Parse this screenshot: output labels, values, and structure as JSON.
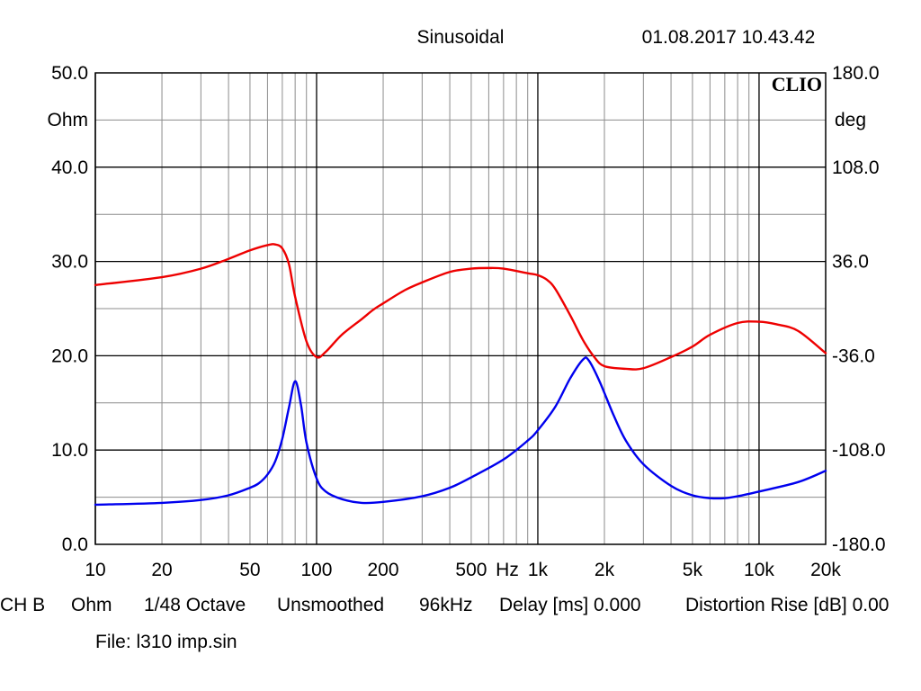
{
  "header": {
    "mode": "Sinusoidal",
    "datetime": "01.08.2017 10.43.42"
  },
  "brand": "CLIO",
  "chart_data": {
    "type": "line",
    "x_scale": "log",
    "xlim": [
      10,
      20000
    ],
    "x_ticks": [
      {
        "value": 10,
        "label": "10"
      },
      {
        "value": 20,
        "label": "20"
      },
      {
        "value": 50,
        "label": "50"
      },
      {
        "value": 100,
        "label": "100"
      },
      {
        "value": 200,
        "label": "200"
      },
      {
        "value": 500,
        "label": "500"
      },
      {
        "value": 1000,
        "label": "1k"
      },
      {
        "value": 2000,
        "label": "2k"
      },
      {
        "value": 5000,
        "label": "5k"
      },
      {
        "value": 10000,
        "label": "10k"
      },
      {
        "value": 20000,
        "label": "20k"
      }
    ],
    "x_unit_label": "Hz",
    "y_left": {
      "unit": "Ohm",
      "lim": [
        0,
        50
      ],
      "ticks": [
        "0.0",
        "10.0",
        "20.0",
        "30.0",
        "40.0",
        "50.0"
      ]
    },
    "y_right": {
      "unit": "deg",
      "lim": [
        -180,
        180
      ],
      "ticks": [
        "-180.0",
        "-108.0",
        "-36.0",
        "36.0",
        "108.0",
        "180.0"
      ]
    },
    "grid": true,
    "series": [
      {
        "axis": "left",
        "color": "#0000ee",
        "points": [
          [
            10,
            4.2
          ],
          [
            20,
            4.4
          ],
          [
            30,
            4.7
          ],
          [
            40,
            5.2
          ],
          [
            50,
            6.0
          ],
          [
            55,
            6.5
          ],
          [
            60,
            7.4
          ],
          [
            65,
            8.8
          ],
          [
            70,
            11.2
          ],
          [
            75,
            14.5
          ],
          [
            80,
            17.3
          ],
          [
            85,
            14.8
          ],
          [
            90,
            10.8
          ],
          [
            100,
            7.0
          ],
          [
            110,
            5.6
          ],
          [
            130,
            4.8
          ],
          [
            160,
            4.4
          ],
          [
            200,
            4.5
          ],
          [
            300,
            5.1
          ],
          [
            400,
            6.0
          ],
          [
            500,
            7.1
          ],
          [
            700,
            9.0
          ],
          [
            900,
            11.0
          ],
          [
            1000,
            12.1
          ],
          [
            1200,
            14.6
          ],
          [
            1400,
            17.6
          ],
          [
            1600,
            19.6
          ],
          [
            1700,
            19.5
          ],
          [
            1900,
            17.3
          ],
          [
            2200,
            13.7
          ],
          [
            2500,
            11.0
          ],
          [
            3000,
            8.5
          ],
          [
            4000,
            6.2
          ],
          [
            5000,
            5.2
          ],
          [
            6000,
            4.9
          ],
          [
            7000,
            4.9
          ],
          [
            8000,
            5.1
          ],
          [
            10000,
            5.6
          ],
          [
            15000,
            6.6
          ],
          [
            20000,
            7.8
          ]
        ]
      },
      {
        "axis": "right",
        "color": "#ee0000",
        "points": [
          [
            10,
            18.0
          ],
          [
            20,
            24.0
          ],
          [
            30,
            30.5
          ],
          [
            40,
            38.0
          ],
          [
            50,
            44.5
          ],
          [
            60,
            48.5
          ],
          [
            65,
            49.0
          ],
          [
            70,
            46.0
          ],
          [
            75,
            34.0
          ],
          [
            80,
            9.0
          ],
          [
            90,
            -25.0
          ],
          [
            100,
            -37.0
          ],
          [
            110,
            -33.0
          ],
          [
            130,
            -20.0
          ],
          [
            160,
            -8.0
          ],
          [
            180,
            -1.0
          ],
          [
            200,
            4.0
          ],
          [
            250,
            14.0
          ],
          [
            300,
            20.0
          ],
          [
            400,
            28.0
          ],
          [
            500,
            30.5
          ],
          [
            600,
            31.0
          ],
          [
            700,
            30.5
          ],
          [
            900,
            27.0
          ],
          [
            1000,
            25.5
          ],
          [
            1100,
            22.0
          ],
          [
            1200,
            15.0
          ],
          [
            1400,
            -5.0
          ],
          [
            1600,
            -24.0
          ],
          [
            1800,
            -37.0
          ],
          [
            2000,
            -44.0
          ],
          [
            2500,
            -46.0
          ],
          [
            3000,
            -45.5
          ],
          [
            4000,
            -37.0
          ],
          [
            5000,
            -29.0
          ],
          [
            6000,
            -20.0
          ],
          [
            8000,
            -11.0
          ],
          [
            10000,
            -10.0
          ],
          [
            12000,
            -12.0
          ],
          [
            15000,
            -17.0
          ],
          [
            20000,
            -34.0
          ]
        ]
      }
    ]
  },
  "footer": {
    "channel": "CH B",
    "unit": "Ohm",
    "resolution": "1/48 Octave",
    "smoothing": "Unsmoothed",
    "sample_rate": "96kHz",
    "delay": "Delay [ms] 0.000",
    "distortion": "Distortion Rise [dB] 0.00",
    "file": "File: l310 imp.sin"
  }
}
